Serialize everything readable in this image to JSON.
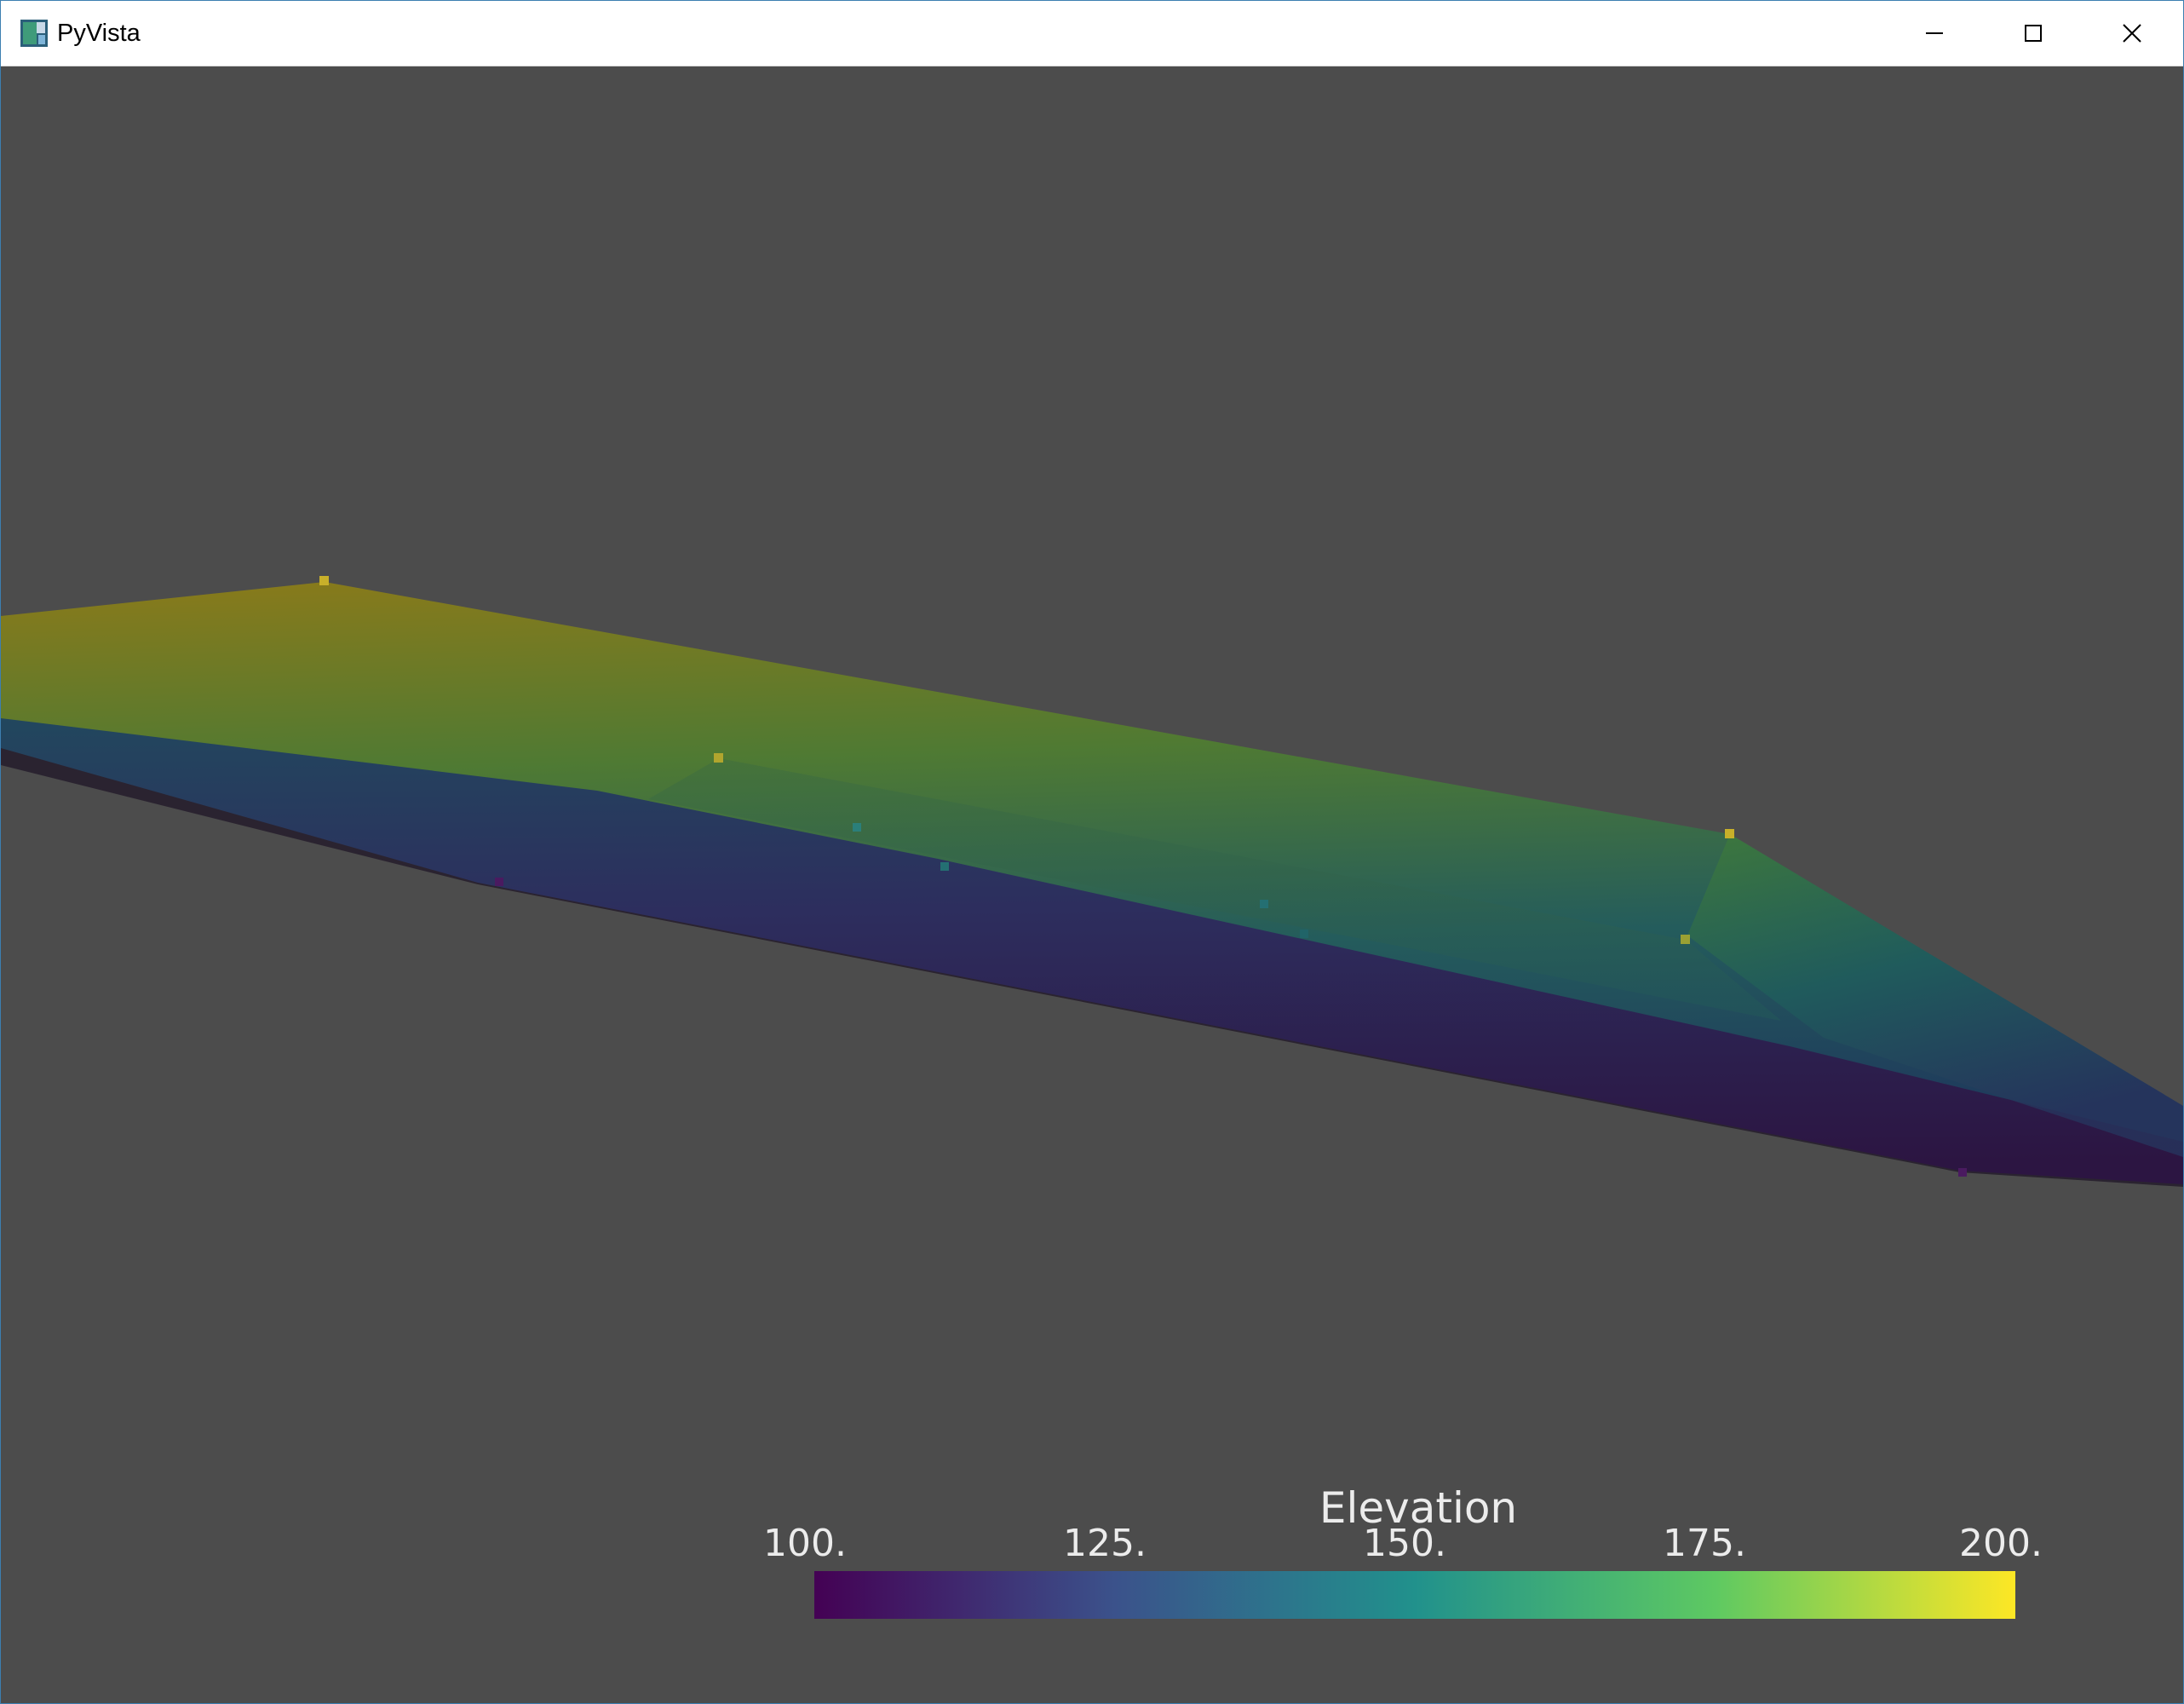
{
  "window": {
    "title": "PyVista",
    "icon": "pyvista-app-icon",
    "controls": {
      "minimize": "minimize-icon",
      "maximize": "maximize-icon",
      "close": "close-icon"
    }
  },
  "scene": {
    "description_icon": "mesh-surface",
    "background_color": "#4c4c4c"
  },
  "scalar_bar": {
    "title": "Elevation",
    "ticks": [
      "100.",
      "125.",
      "150.",
      "175.",
      "200."
    ],
    "colormap": [
      "#440154",
      "#3b528b",
      "#21918c",
      "#5ec962",
      "#fde725"
    ]
  }
}
